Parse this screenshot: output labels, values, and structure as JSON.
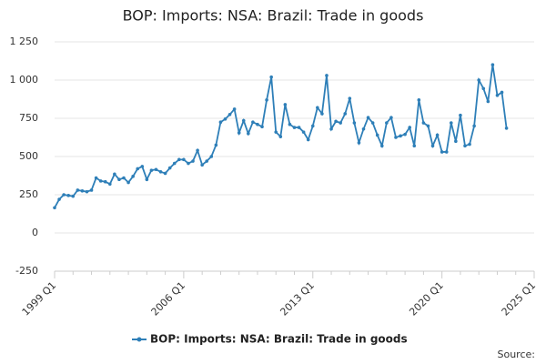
{
  "chart_data": {
    "type": "line",
    "title": "BOP: Imports: NSA: Brazil: Trade in goods",
    "source": "Source:",
    "categories": [
      "1999 Q1",
      null,
      null,
      null,
      null,
      null,
      null,
      null,
      null,
      null,
      null,
      null,
      null,
      null,
      null,
      null,
      null,
      null,
      null,
      null,
      null,
      null,
      null,
      null,
      null,
      null,
      null,
      null,
      "2006 Q1",
      null,
      null,
      null,
      null,
      null,
      null,
      null,
      null,
      null,
      null,
      null,
      null,
      null,
      null,
      null,
      null,
      null,
      null,
      null,
      null,
      null,
      null,
      null,
      null,
      null,
      null,
      null,
      "2013 Q1",
      null,
      null,
      null,
      null,
      null,
      null,
      null,
      null,
      null,
      null,
      null,
      null,
      null,
      null,
      null,
      null,
      null,
      null,
      null,
      null,
      null,
      null,
      null,
      null,
      null,
      null,
      null,
      "2020 Q1",
      null,
      null,
      null,
      null,
      null,
      null,
      null,
      null,
      null,
      null,
      null,
      null,
      null,
      null,
      null,
      null,
      null,
      null,
      null,
      "2025 Q1"
    ],
    "series": [
      {
        "name": "BOP: Imports: NSA: Brazil: Trade in goods",
        "color": "#2e7fb8",
        "values": [
          165,
          220,
          250,
          245,
          240,
          280,
          275,
          270,
          280,
          360,
          340,
          335,
          320,
          385,
          350,
          360,
          330,
          370,
          420,
          435,
          350,
          410,
          415,
          400,
          390,
          425,
          455,
          480,
          480,
          455,
          470,
          540,
          445,
          470,
          500,
          575,
          725,
          745,
          775,
          810,
          655,
          735,
          650,
          725,
          710,
          695,
          870,
          1020,
          660,
          630,
          840,
          710,
          690,
          690,
          660,
          610,
          700,
          820,
          780,
          1030,
          680,
          730,
          720,
          780,
          880,
          720,
          590,
          680,
          755,
          720,
          640,
          570,
          720,
          755,
          625,
          635,
          645,
          690,
          570,
          870,
          720,
          700,
          570,
          640,
          530,
          530,
          720,
          600,
          770,
          570,
          580,
          700,
          1000,
          945,
          860,
          1100,
          900,
          920,
          685,
          null,
          null,
          null,
          null,
          null,
          null
        ]
      }
    ],
    "ylim": [
      -250,
      1250
    ],
    "yticks": [
      {
        "value": -250,
        "label": "-250"
      },
      0,
      250,
      500,
      750,
      {
        "value": 1000,
        "label": "1 000"
      },
      {
        "value": 1250,
        "label": "1 250"
      }
    ],
    "grid": true
  }
}
